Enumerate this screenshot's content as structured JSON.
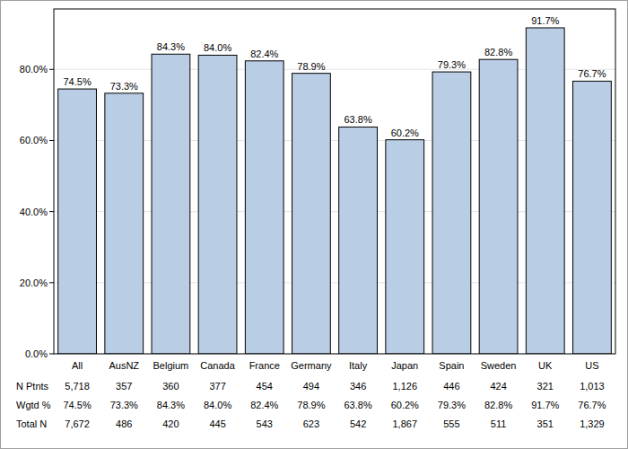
{
  "chart_data": {
    "type": "bar",
    "categories": [
      "All",
      "AusNZ",
      "Belgium",
      "Canada",
      "France",
      "Germany",
      "Italy",
      "Japan",
      "Spain",
      "Sweden",
      "UK",
      "US"
    ],
    "values": [
      74.5,
      73.3,
      84.3,
      84.0,
      82.4,
      78.9,
      63.8,
      60.2,
      79.3,
      82.8,
      91.7,
      76.7
    ],
    "value_labels": [
      "74.5%",
      "73.3%",
      "84.3%",
      "84.0%",
      "82.4%",
      "78.9%",
      "63.8%",
      "60.2%",
      "79.3%",
      "82.8%",
      "91.7%",
      "76.7%"
    ],
    "color": "#b9cde5",
    "ylim": [
      0,
      97
    ],
    "yticks": [
      {
        "value": 0,
        "label": "0.0%"
      },
      {
        "value": 20,
        "label": "20.0%"
      },
      {
        "value": 40,
        "label": "40.0%"
      },
      {
        "value": 60,
        "label": "60.0%"
      },
      {
        "value": 80,
        "label": "80.0%"
      }
    ],
    "grid": true,
    "data_labels": true
  },
  "table": {
    "rows": [
      {
        "label": "N Ptnts",
        "cells": [
          "5,718",
          "357",
          "360",
          "377",
          "454",
          "494",
          "346",
          "1,126",
          "446",
          "424",
          "321",
          "1,013"
        ]
      },
      {
        "label": "Wgtd %",
        "cells": [
          "74.5%",
          "73.3%",
          "84.3%",
          "84.0%",
          "82.4%",
          "78.9%",
          "63.8%",
          "60.2%",
          "79.3%",
          "82.8%",
          "91.7%",
          "76.7%"
        ]
      },
      {
        "label": "Total N",
        "cells": [
          "7,672",
          "486",
          "420",
          "445",
          "543",
          "623",
          "542",
          "1,867",
          "555",
          "511",
          "351",
          "1,329"
        ]
      }
    ]
  }
}
